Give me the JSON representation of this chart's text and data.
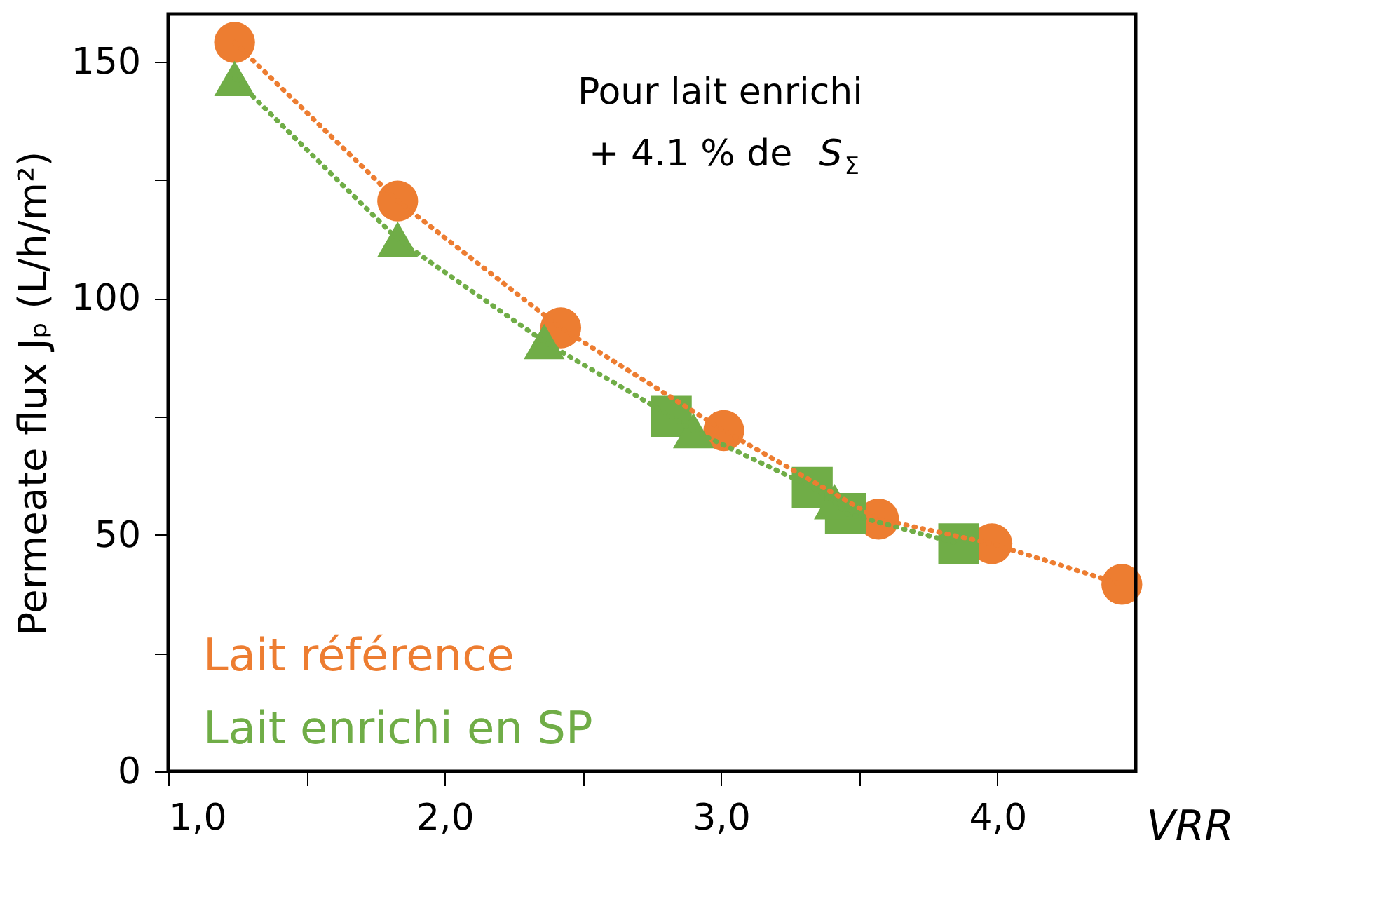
{
  "chart_data": {
    "type": "scatter",
    "xlabel": "VRR",
    "ylabel": "Permeate flux Jₚ (L/h/m²)",
    "xlim": [
      1,
      4.5
    ],
    "ylim": [
      0,
      160
    ],
    "xticks": [
      {
        "value": 1,
        "label": "1,0"
      },
      {
        "value": 1.5,
        "label": null
      },
      {
        "value": 2,
        "label": "2,0"
      },
      {
        "value": 2.5,
        "label": null
      },
      {
        "value": 3,
        "label": "3,0"
      },
      {
        "value": 3.5,
        "label": null
      },
      {
        "value": 4,
        "label": "4,0"
      }
    ],
    "yticks": [
      0,
      {
        "value": 25,
        "label": null
      },
      50,
      {
        "value": 75,
        "label": null
      },
      100,
      {
        "value": 125,
        "label": null
      },
      150
    ],
    "grid": false,
    "legend": "bottom left",
    "annotations": [
      "Pour lait enrichi",
      "+ 4.1 % de S$_{Σ}$"
    ],
    "series": [
      {
        "type": "line",
        "color": "#ed7d31",
        "marker": "none",
        "line_style": "dotted",
        "x": [
          1.24,
          1.83,
          2.42,
          3.01,
          3.57,
          3.98,
          4.45
        ],
        "values": [
          154,
          120.5,
          93.7,
          72,
          53.3,
          48.1,
          39.5
        ]
      },
      {
        "type": "line",
        "color": "#70ad47",
        "marker": "none",
        "line_style": "dotted",
        "x": [
          1.24,
          1.83,
          2.36,
          2.82,
          2.9,
          3.33,
          3.41,
          3.45,
          3.86
        ],
        "values": [
          146.4,
          112.4,
          90.8,
          75,
          72,
          60,
          57,
          54.5,
          48.1
        ]
      },
      {
        "name": "Lait référence",
        "color": "#ed7d31",
        "marker": "circle",
        "x": [
          1.24,
          1.83,
          2.42,
          3.01,
          3.57,
          3.98,
          4.45
        ],
        "values": [
          154,
          120.5,
          93.7,
          72,
          53.3,
          48.1,
          39.5
        ]
      },
      {
        "color": "#70ad47",
        "marker": "square",
        "x": [
          2.82,
          3.33,
          3.45,
          3.86
        ],
        "values": [
          75,
          60,
          54.5,
          48.1
        ]
      },
      {
        "name": "Lait enrichi en SP",
        "color": "#70ad47",
        "marker": "triangle",
        "x": [
          1.24,
          1.83,
          2.36,
          2.9,
          3.41
        ],
        "values": [
          146.4,
          112.4,
          90.8,
          72,
          57
        ]
      }
    ]
  }
}
